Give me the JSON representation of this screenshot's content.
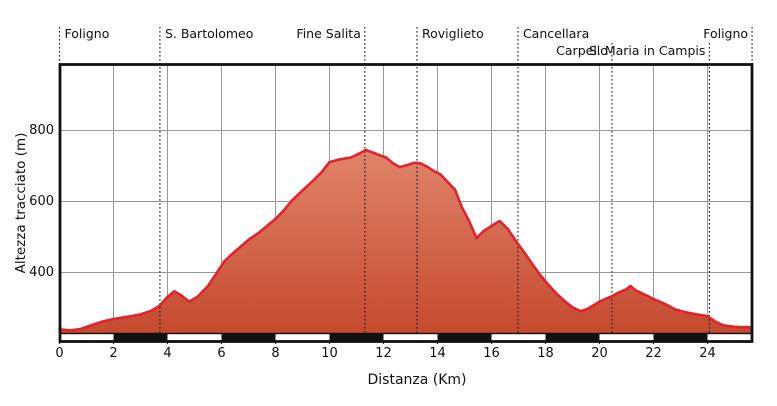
{
  "chart_data": {
    "type": "area",
    "title": "",
    "xlabel": "Distanza (Km)",
    "ylabel": "Altezza tracciato (m)",
    "x_ticks": [
      0,
      2,
      4,
      6,
      8,
      10,
      12,
      14,
      16,
      18,
      20,
      22,
      24
    ],
    "y_ticks": [
      400,
      600,
      800
    ],
    "xlim": [
      0,
      25.65
    ],
    "ylim": [
      228,
      975
    ],
    "grid": true,
    "x_km": [
      0,
      0.4,
      0.8,
      1.2,
      1.6,
      2,
      2.5,
      3,
      3.4,
      3.7,
      4.0,
      4.25,
      4.5,
      4.8,
      5.1,
      5.5,
      5.8,
      6.1,
      6.4,
      6.7,
      7,
      7.4,
      7.7,
      8,
      8.3,
      8.6,
      9,
      9.4,
      9.7,
      10,
      10.4,
      10.8,
      11.1,
      11.35,
      11.6,
      11.9,
      12.1,
      12.35,
      12.6,
      12.9,
      13.15,
      13.35,
      13.6,
      13.9,
      14.1,
      14.4,
      14.65,
      14.9,
      15.15,
      15.45,
      15.7,
      16,
      16.3,
      16.6,
      16.9,
      17.2,
      17.5,
      17.8,
      18.1,
      18.4,
      18.7,
      19,
      19.3,
      19.6,
      20,
      20.4,
      20.7,
      21.0,
      21.15,
      21.35,
      21.7,
      22,
      22.4,
      22.8,
      23.2,
      23.6,
      24,
      24.3,
      24.6,
      25,
      25.3,
      25.65
    ],
    "elevation_m": [
      240,
      237,
      241,
      252,
      262,
      269,
      275,
      282,
      292,
      306,
      331,
      347,
      336,
      318,
      331,
      362,
      396,
      431,
      453,
      472,
      492,
      513,
      532,
      551,
      574,
      602,
      631,
      659,
      682,
      711,
      719,
      724,
      735,
      745,
      738,
      729,
      724,
      708,
      697,
      703,
      709,
      708,
      699,
      684,
      677,
      653,
      633,
      584,
      548,
      497,
      516,
      531,
      545,
      523,
      489,
      458,
      425,
      393,
      366,
      341,
      320,
      302,
      291,
      299,
      318,
      331,
      343,
      353,
      362,
      349,
      337,
      325,
      312,
      296,
      288,
      282,
      277,
      261,
      251,
      247,
      246,
      246
    ],
    "markers": [
      {
        "label": "Foligno",
        "km": 0,
        "row": 1,
        "align": "left"
      },
      {
        "label": "S. Bartolomeo",
        "km": 3.72,
        "row": 1,
        "align": "left"
      },
      {
        "label": "Fine Salita",
        "km": 11.31,
        "row": 1,
        "align": "right"
      },
      {
        "label": "Roviglieto",
        "km": 13.24,
        "row": 1,
        "align": "left"
      },
      {
        "label": "Cancellara",
        "km": 16.98,
        "row": 1,
        "align": "left"
      },
      {
        "label": "Carpello",
        "km": 20.46,
        "row": 2,
        "align": "right"
      },
      {
        "label": "S. Maria in Campis",
        "km": 24.07,
        "row": 2,
        "align": "right"
      },
      {
        "label": "Foligno",
        "km": 25.65,
        "row": 1,
        "align": "right"
      }
    ],
    "scale_bar": {
      "interval_km": 2,
      "first_segment": "white"
    },
    "colors": {
      "line": "#e2222d",
      "fill_top": "#eca086",
      "fill_bottom": "#c5492f",
      "grid": "#999999",
      "marker_line": "#1a1a1a",
      "frame": "#111111",
      "bar_black": "#111111",
      "bar_white": "#ffffff",
      "text": "#111111"
    }
  }
}
